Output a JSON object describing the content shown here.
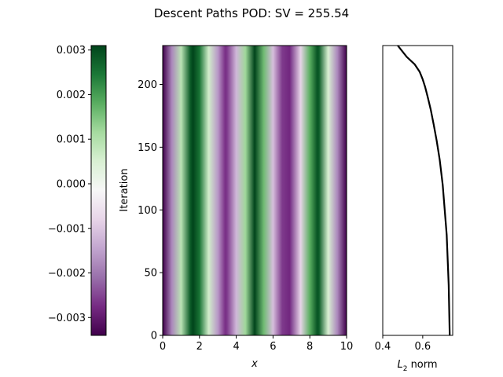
{
  "title": "Descent Paths POD: SV = 255.54",
  "chart_data": [
    {
      "type": "heatmap",
      "xlabel": "x",
      "ylabel": "Iteration",
      "xlim": [
        0,
        10
      ],
      "ylim": [
        0,
        231
      ],
      "x_ticks": [
        "0",
        "2",
        "4",
        "6",
        "8",
        "10"
      ],
      "y_ticks": [
        "0",
        "50",
        "100",
        "150",
        "200"
      ],
      "colormap": "PRGn",
      "field": {
        "description_of_values": "value is constant along Iteration; varies along x",
        "x": [
          0.0,
          0.5,
          1.0,
          1.5,
          1.65,
          2.0,
          2.5,
          3.0,
          3.4,
          3.5,
          4.0,
          4.5,
          5.0,
          5.5,
          6.0,
          6.5,
          6.9,
          7.0,
          7.5,
          8.0,
          8.4,
          8.5,
          9.0,
          9.5,
          10.0
        ],
        "values": [
          -0.0034,
          -0.0018,
          0.0009,
          0.0028,
          0.0031,
          0.0025,
          0.0006,
          -0.0016,
          -0.0027,
          -0.0026,
          -0.0012,
          0.0012,
          0.0031,
          0.0016,
          -0.0011,
          -0.0026,
          -0.0028,
          -0.0025,
          -0.0008,
          0.0018,
          0.0029,
          0.0028,
          0.0005,
          -0.0018,
          -0.0034
        ]
      }
    },
    {
      "type": "colorbar",
      "range": [
        -0.0034,
        0.0031
      ],
      "ticks": [
        {
          "value": 0.003,
          "label": "0.003"
        },
        {
          "value": 0.002,
          "label": "0.002"
        },
        {
          "value": 0.001,
          "label": "0.001"
        },
        {
          "value": 0.0,
          "label": "0.000"
        },
        {
          "value": -0.001,
          "label": "−0.001"
        },
        {
          "value": -0.002,
          "label": "−0.002"
        },
        {
          "value": -0.003,
          "label": "−0.003"
        }
      ]
    },
    {
      "type": "line",
      "xlabel": "L2 norm",
      "xlabel_main": "L",
      "xlabel_sub": "2",
      "xlabel_rest": " norm",
      "xlim": [
        0.4,
        0.75
      ],
      "ylim": [
        0,
        231
      ],
      "x_ticks": [
        {
          "value": 0.4,
          "label": "0.4"
        },
        {
          "value": 0.6,
          "label": "0.6"
        }
      ],
      "color": "#000000",
      "series": [
        {
          "x": [
            0.735,
            0.73,
            0.72,
            0.71,
            0.7,
            0.685,
            0.67,
            0.655,
            0.64,
            0.625,
            0.612,
            0.6,
            0.585,
            0.56,
            0.52,
            0.49,
            0.475
          ],
          "y": [
            0,
            40,
            80,
            100,
            120,
            140,
            155,
            168,
            180,
            190,
            198,
            204,
            210,
            216,
            222,
            228,
            231
          ]
        }
      ]
    }
  ]
}
